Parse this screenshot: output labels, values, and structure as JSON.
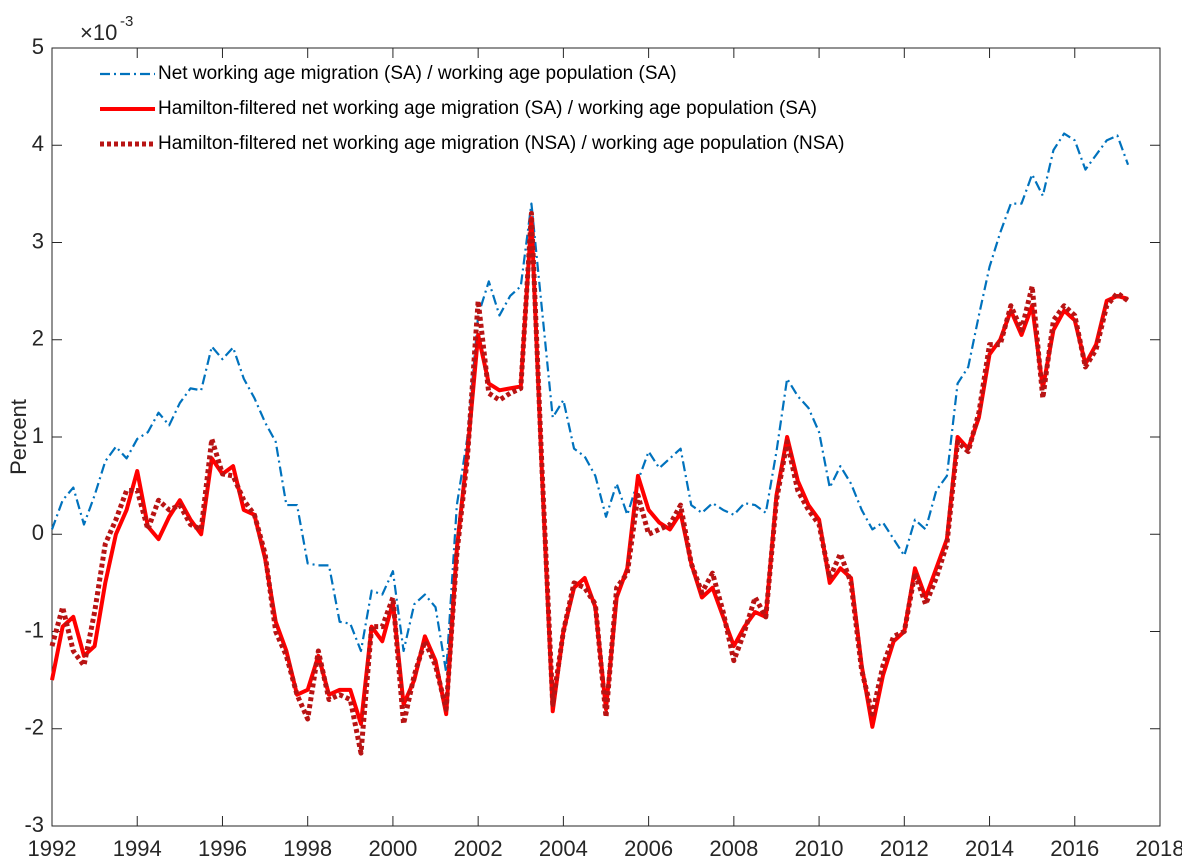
{
  "chart_data": {
    "type": "line",
    "y_label": "Percent",
    "y_multiplier": "×10",
    "y_multiplier_exponent": "-3",
    "xlim": [
      1992,
      2018
    ],
    "xticks": [
      1992,
      1994,
      1996,
      1998,
      2000,
      2002,
      2004,
      2006,
      2008,
      2010,
      2012,
      2014,
      2016,
      2018
    ],
    "ylim": [
      -3,
      5
    ],
    "yticks": [
      -3,
      -2,
      -1,
      0,
      1,
      2,
      3,
      4,
      5
    ],
    "grid": false,
    "legend_position": "upper-left",
    "x": [
      1992,
      1992.25,
      1992.5,
      1992.75,
      1993,
      1993.25,
      1993.5,
      1993.75,
      1994,
      1994.25,
      1994.5,
      1994.75,
      1995,
      1995.25,
      1995.5,
      1995.75,
      1996,
      1996.25,
      1996.5,
      1996.75,
      1997,
      1997.25,
      1997.5,
      1997.75,
      1998,
      1998.25,
      1998.5,
      1998.75,
      1999,
      1999.25,
      1999.5,
      1999.75,
      2000,
      2000.25,
      2000.5,
      2000.75,
      2001,
      2001.25,
      2001.5,
      2001.75,
      2002,
      2002.25,
      2002.5,
      2002.75,
      2003,
      2003.25,
      2003.5,
      2003.75,
      2004,
      2004.25,
      2004.5,
      2004.75,
      2005,
      2005.25,
      2005.5,
      2005.75,
      2006,
      2006.25,
      2006.5,
      2006.75,
      2007,
      2007.25,
      2007.5,
      2007.75,
      2008,
      2008.25,
      2008.5,
      2008.75,
      2009,
      2009.25,
      2009.5,
      2009.75,
      2010,
      2010.25,
      2010.5,
      2010.75,
      2011,
      2011.25,
      2011.5,
      2011.75,
      2012,
      2012.25,
      2012.5,
      2012.75,
      2013,
      2013.25,
      2013.5,
      2013.75,
      2014,
      2014.25,
      2014.5,
      2014.75,
      2015,
      2015.25,
      2015.5,
      2015.75,
      2016,
      2016.25,
      2016.5,
      2016.75,
      2017,
      2017.25
    ],
    "series": [
      {
        "name": "Net working age migration (SA) / working age population (SA)",
        "color": "#0072bd",
        "linestyle": "dashdot",
        "linewidth": 2.2,
        "values": [
          0.05,
          0.35,
          0.48,
          0.1,
          0.4,
          0.75,
          0.9,
          0.78,
          0.98,
          1.05,
          1.25,
          1.12,
          1.35,
          1.5,
          1.48,
          1.93,
          1.8,
          1.92,
          1.6,
          1.4,
          1.15,
          0.95,
          0.3,
          0.3,
          -0.3,
          -0.32,
          -0.32,
          -0.9,
          -0.92,
          -1.2,
          -0.58,
          -0.62,
          -0.38,
          -1.2,
          -0.72,
          -0.62,
          -0.75,
          -1.42,
          0.3,
          1.0,
          2.25,
          2.6,
          2.25,
          2.45,
          2.55,
          3.4,
          2.3,
          1.2,
          1.38,
          0.88,
          0.8,
          0.6,
          0.18,
          0.52,
          0.2,
          0.55,
          0.85,
          0.68,
          0.78,
          0.88,
          0.3,
          0.22,
          0.32,
          0.25,
          0.2,
          0.32,
          0.3,
          0.22,
          0.85,
          1.6,
          1.42,
          1.3,
          1.05,
          0.48,
          0.7,
          0.52,
          0.25,
          0.05,
          0.12,
          -0.05,
          -0.22,
          0.15,
          0.05,
          0.45,
          0.6,
          1.55,
          1.72,
          2.25,
          2.75,
          3.1,
          3.4,
          3.4,
          3.7,
          3.48,
          3.95,
          4.12,
          4.05,
          3.75,
          3.9,
          4.05,
          4.1,
          3.8
        ]
      },
      {
        "name": "Hamilton-filtered net working age migration (SA) / working age population (SA)",
        "color": "#ff0000",
        "linestyle": "solid",
        "linewidth": 4,
        "values": [
          -1.5,
          -0.95,
          -0.85,
          -1.25,
          -1.15,
          -0.5,
          0.0,
          0.25,
          0.65,
          0.08,
          -0.05,
          0.18,
          0.35,
          0.15,
          0.0,
          0.78,
          0.62,
          0.7,
          0.25,
          0.2,
          -0.25,
          -0.9,
          -1.2,
          -1.65,
          -1.6,
          -1.25,
          -1.65,
          -1.6,
          -1.6,
          -1.95,
          -0.95,
          -1.1,
          -0.7,
          -1.75,
          -1.5,
          -1.05,
          -1.3,
          -1.85,
          -0.15,
          0.85,
          2.05,
          1.55,
          1.48,
          1.5,
          1.52,
          3.25,
          0.6,
          -1.82,
          -1.0,
          -0.55,
          -0.45,
          -0.75,
          -1.8,
          -0.65,
          -0.35,
          0.6,
          0.25,
          0.12,
          0.05,
          0.22,
          -0.3,
          -0.65,
          -0.55,
          -0.85,
          -1.15,
          -0.95,
          -0.8,
          -0.85,
          0.4,
          1.0,
          0.55,
          0.3,
          0.15,
          -0.5,
          -0.35,
          -0.45,
          -1.35,
          -1.98,
          -1.45,
          -1.1,
          -1.0,
          -0.35,
          -0.65,
          -0.35,
          -0.05,
          1.0,
          0.88,
          1.2,
          1.85,
          2.0,
          2.3,
          2.05,
          2.35,
          1.5,
          2.1,
          2.3,
          2.2,
          1.75,
          1.95,
          2.4,
          2.45,
          2.42
        ]
      },
      {
        "name": "Hamilton-filtered net working age migration (NSA) / working age population (NSA)",
        "color": "#b81414",
        "linestyle": "dotted",
        "linewidth": 5,
        "values": [
          -1.15,
          -0.75,
          -1.2,
          -1.35,
          -0.8,
          -0.1,
          0.15,
          0.45,
          0.45,
          0.05,
          0.35,
          0.25,
          0.3,
          0.1,
          0.05,
          0.98,
          0.62,
          0.6,
          0.35,
          0.2,
          -0.2,
          -1.0,
          -1.25,
          -1.65,
          -1.9,
          -1.2,
          -1.7,
          -1.65,
          -1.7,
          -2.25,
          -0.95,
          -0.95,
          -0.65,
          -1.95,
          -1.45,
          -1.1,
          -1.35,
          -1.8,
          -0.2,
          0.8,
          2.4,
          1.45,
          1.38,
          1.45,
          1.5,
          3.3,
          0.65,
          -1.75,
          -1.0,
          -0.5,
          -0.55,
          -0.72,
          -1.88,
          -0.55,
          -0.4,
          0.4,
          0.0,
          0.05,
          0.1,
          0.3,
          -0.3,
          -0.6,
          -0.4,
          -0.8,
          -1.3,
          -1.0,
          -0.65,
          -0.85,
          0.35,
          0.95,
          0.45,
          0.25,
          0.1,
          -0.45,
          -0.2,
          -0.5,
          -1.4,
          -1.85,
          -1.35,
          -1.05,
          -1.0,
          -0.4,
          -0.72,
          -0.45,
          -0.1,
          0.95,
          0.85,
          1.25,
          1.95,
          1.95,
          2.35,
          2.1,
          2.55,
          1.4,
          2.2,
          2.35,
          2.25,
          1.72,
          1.9,
          2.35,
          2.48,
          2.4
        ]
      }
    ]
  }
}
